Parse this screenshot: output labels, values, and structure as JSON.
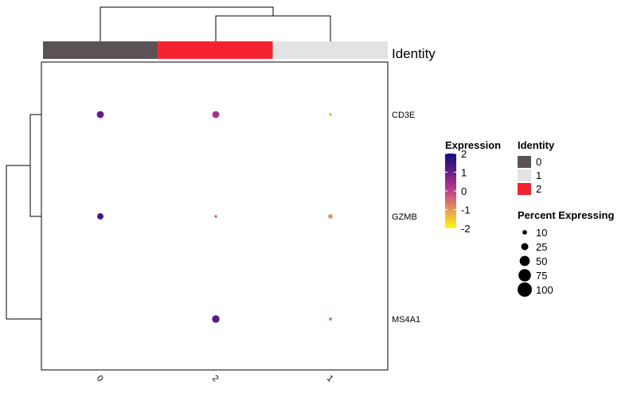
{
  "chart_data": {
    "type": "dotplot",
    "categories": [
      "0",
      "2",
      "1"
    ],
    "rows": [
      "CD3E",
      "GZMB",
      "MS4A1"
    ],
    "cells": [
      {
        "gene": "CD3E",
        "identity": "0",
        "expression": 1.0,
        "pct": 40
      },
      {
        "gene": "CD3E",
        "identity": "2",
        "expression": 0.3,
        "pct": 40
      },
      {
        "gene": "CD3E",
        "identity": "1",
        "expression": -1.2,
        "pct": 6
      },
      {
        "gene": "GZMB",
        "identity": "0",
        "expression": 1.4,
        "pct": 32
      },
      {
        "gene": "GZMB",
        "identity": "2",
        "expression": -0.4,
        "pct": 6
      },
      {
        "gene": "GZMB",
        "identity": "1",
        "expression": -0.9,
        "pct": 16
      },
      {
        "gene": "MS4A1",
        "identity": "0",
        "expression": null,
        "pct": 0
      },
      {
        "gene": "MS4A1",
        "identity": "2",
        "expression": 1.2,
        "pct": 45
      },
      {
        "gene": "MS4A1",
        "identity": "1",
        "expression": -0.6,
        "pct": 8
      }
    ],
    "identity_bar_label": "Identity",
    "identity_colors": {
      "0": "#595256",
      "1": "#e3e3e3",
      "2": "#f4232f"
    },
    "expression_legend": {
      "title": "Expression",
      "ticks": [
        2,
        1,
        0,
        -1,
        -2
      ],
      "range": [
        -2,
        2
      ],
      "colors": [
        "#fafa13",
        "#e39a55",
        "#bf3f8d",
        "#6a1a87",
        "#0f0e7b"
      ]
    },
    "identity_legend": {
      "title": "Identity",
      "items": [
        {
          "label": "0",
          "color": "#595256"
        },
        {
          "label": "1",
          "color": "#e3e3e3"
        },
        {
          "label": "2",
          "color": "#f4232f"
        }
      ]
    },
    "size_legend": {
      "title": "Percent Expressing",
      "values": [
        10,
        25,
        50,
        75,
        100
      ]
    }
  }
}
